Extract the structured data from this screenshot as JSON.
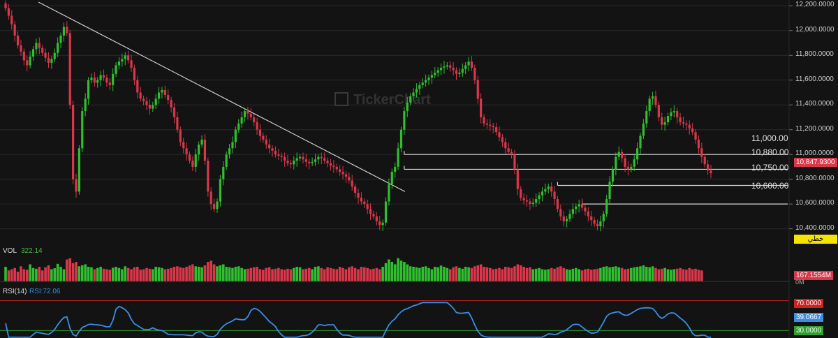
{
  "colors": {
    "up": "#2fbf2f",
    "down": "#d9374a",
    "rsi": "#3a8ee6",
    "bg": "#131313",
    "grid": "#2a2a2a"
  },
  "watermark": "TickerChart",
  "price_axis": {
    "labels": [
      "12,200.0000",
      "12,000.0000",
      "11,800.0000",
      "11,600.0000",
      "11,400.0000",
      "11,200.0000",
      "11,000.0000",
      "10,800.0000",
      "10,600.0000",
      "10,400.0000"
    ]
  },
  "last_price_tag": "10,847.9300",
  "linear_tag": "خطي",
  "levels": [
    {
      "label": "11,000.00",
      "value": 11000
    },
    {
      "label": "10,880.00",
      "value": 10880
    },
    {
      "label": "10,750.00",
      "value": 10750
    },
    {
      "label": "10,600.00",
      "value": 10600
    }
  ],
  "volume": {
    "label": "VOL",
    "value": "322.14",
    "tag": "167.1554M",
    "unit": "0M"
  },
  "rsi": {
    "label": "RSI(14)",
    "value_label": "RSI:72.06",
    "upper_tag": "70.0000",
    "mid_tag": "39.0667",
    "lower_tag": "30.0000"
  },
  "chart_data": {
    "type": "candlestick",
    "ylim": [
      10330,
      12230
    ],
    "levels": [
      11000,
      10880,
      10750,
      10600
    ],
    "trendline": {
      "start": 12230,
      "end": 10700
    },
    "closes": [
      12180,
      12120,
      12050,
      11960,
      11880,
      11830,
      11760,
      11720,
      11790,
      11850,
      11900,
      11860,
      11820,
      11780,
      11740,
      11770,
      11820,
      11900,
      11960,
      12030,
      11980,
      11400,
      10800,
      10700,
      11050,
      11350,
      11450,
      11600,
      11620,
      11580,
      11600,
      11640,
      11620,
      11580,
      11560,
      11650,
      11720,
      11750,
      11770,
      11800,
      11760,
      11700,
      11600,
      11500,
      11450,
      11430,
      11400,
      11370,
      11400,
      11450,
      11500,
      11520,
      11480,
      11440,
      11380,
      11300,
      11200,
      11100,
      11050,
      11000,
      10950,
      10900,
      11000,
      11080,
      11120,
      10950,
      10700,
      10600,
      10560,
      10620,
      10800,
      10900,
      11000,
      11050,
      11100,
      11200,
      11250,
      11300,
      11350,
      11330,
      11300,
      11260,
      11200,
      11150,
      11120,
      11080,
      11050,
      11030,
      11000,
      10990,
      10980,
      10950,
      10930,
      10920,
      10950,
      10970,
      10980,
      10960,
      10940,
      10930,
      10940,
      10960,
      10980,
      10970,
      10950,
      10930,
      10910,
      10900,
      10880,
      10860,
      10840,
      10820,
      10790,
      10740,
      10690,
      10650,
      10620,
      10600,
      10560,
      10520,
      10500,
      10460,
      10430,
      10450,
      10620,
      10760,
      10860,
      10900,
      11050,
      11200,
      11350,
      11420,
      11470,
      11500,
      11530,
      11560,
      11580,
      11600,
      11620,
      11640,
      11660,
      11680,
      11700,
      11710,
      11720,
      11700,
      11680,
      11650,
      11660,
      11690,
      11720,
      11750,
      11700,
      11600,
      11450,
      11300,
      11250,
      11240,
      11230,
      11220,
      11180,
      11140,
      11100,
      11050,
      11020,
      11000,
      10880,
      10720,
      10650,
      10630,
      10620,
      10600,
      10610,
      10640,
      10670,
      10700,
      10720,
      10740,
      10700,
      10640,
      10560,
      10500,
      10460,
      10480,
      10520,
      10560,
      10580,
      10600,
      10570,
      10540,
      10500,
      10470,
      10440,
      10420,
      10460,
      10520,
      10640,
      10780,
      10880,
      10980,
      11020,
      10970,
      10900,
      10880,
      10900,
      10960,
      11050,
      11150,
      11250,
      11350,
      11450,
      11470,
      11400,
      11300,
      11240,
      11260,
      11310,
      11340,
      11350,
      11300,
      11260,
      11250,
      11240,
      11210,
      11180,
      11120,
      11050,
      10980,
      10920,
      10870,
      10847.93
    ],
    "volumes": [
      0.6,
      0.45,
      0.5,
      0.55,
      0.4,
      0.62,
      0.5,
      0.48,
      0.7,
      0.55,
      0.52,
      0.6,
      0.45,
      0.58,
      0.66,
      0.5,
      0.54,
      0.72,
      0.6,
      0.5,
      0.9,
      0.95,
      0.75,
      0.8,
      0.62,
      0.66,
      0.7,
      0.6,
      0.58,
      0.5,
      0.55,
      0.6,
      0.52,
      0.5,
      0.48,
      0.56,
      0.6,
      0.55,
      0.5,
      0.62,
      0.55,
      0.5,
      0.58,
      0.6,
      0.48,
      0.5,
      0.55,
      0.52,
      0.5,
      0.6,
      0.58,
      0.55,
      0.5,
      0.52,
      0.55,
      0.6,
      0.62,
      0.58,
      0.55,
      0.6,
      0.65,
      0.7,
      0.62,
      0.6,
      0.58,
      0.66,
      0.8,
      0.85,
      0.7,
      0.62,
      0.66,
      0.7,
      0.6,
      0.58,
      0.55,
      0.6,
      0.62,
      0.55,
      0.5,
      0.52,
      0.55,
      0.58,
      0.6,
      0.5,
      0.48,
      0.55,
      0.58,
      0.5,
      0.52,
      0.55,
      0.5,
      0.48,
      0.52,
      0.5,
      0.55,
      0.6,
      0.58,
      0.5,
      0.52,
      0.55,
      0.5,
      0.6,
      0.62,
      0.55,
      0.5,
      0.58,
      0.55,
      0.52,
      0.5,
      0.6,
      0.55,
      0.5,
      0.58,
      0.62,
      0.55,
      0.5,
      0.6,
      0.58,
      0.55,
      0.5,
      0.52,
      0.55,
      0.5,
      0.6,
      0.75,
      0.9,
      0.8,
      0.7,
      0.95,
      0.85,
      0.8,
      0.7,
      0.62,
      0.6,
      0.58,
      0.55,
      0.6,
      0.62,
      0.55,
      0.5,
      0.6,
      0.58,
      0.65,
      0.6,
      0.55,
      0.5,
      0.58,
      0.62,
      0.55,
      0.52,
      0.6,
      0.58,
      0.55,
      0.62,
      0.66,
      0.7,
      0.6,
      0.58,
      0.55,
      0.5,
      0.52,
      0.55,
      0.5,
      0.6,
      0.58,
      0.55,
      0.62,
      0.7,
      0.66,
      0.6,
      0.55,
      0.58,
      0.5,
      0.52,
      0.55,
      0.5,
      0.48,
      0.5,
      0.55,
      0.52,
      0.58,
      0.62,
      0.55,
      0.5,
      0.48,
      0.52,
      0.55,
      0.5,
      0.45,
      0.5,
      0.52,
      0.48,
      0.5,
      0.52,
      0.55,
      0.6,
      0.62,
      0.58,
      0.6,
      0.62,
      0.58,
      0.55,
      0.5,
      0.52,
      0.55,
      0.58,
      0.6,
      0.62,
      0.66,
      0.6,
      0.58,
      0.62,
      0.55,
      0.5,
      0.52,
      0.55,
      0.5,
      0.48,
      0.5,
      0.52,
      0.55,
      0.5,
      0.48,
      0.55,
      0.5,
      0.52,
      0.48,
      0.45
    ],
    "rsi": {
      "upper": 70,
      "lower": 30,
      "last": 72.06
    }
  }
}
